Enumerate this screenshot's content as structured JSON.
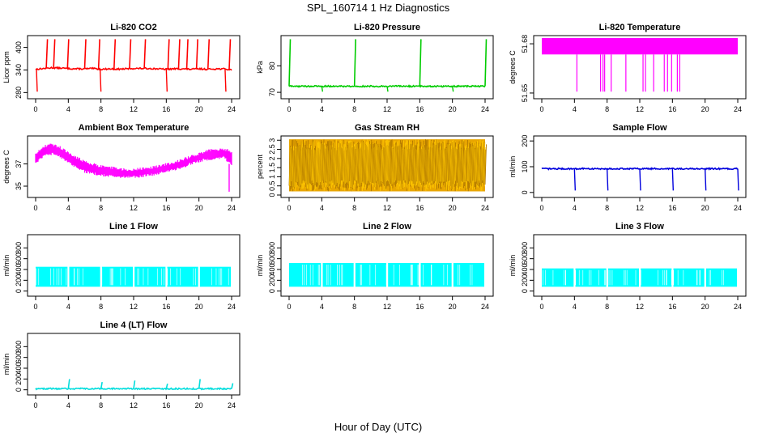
{
  "figure": {
    "title": "SPL_160714  1 Hz Diagnostics",
    "xlabel": "Hour of Day (UTC)"
  },
  "chart_data": [
    {
      "type": "line",
      "title": "Li-820 CO2",
      "ylabel": "Licor ppm",
      "color": "#ff0000",
      "xlim": [
        0,
        24
      ],
      "ylim": [
        270,
        425
      ],
      "xticks": [
        0,
        4,
        8,
        12,
        16,
        20,
        24
      ],
      "yticks": [
        280,
        340,
        400
      ],
      "series": [
        {
          "name": "CO2",
          "x": [
            0,
            1,
            2,
            3,
            4,
            5,
            6,
            7,
            8,
            9,
            10,
            11,
            12,
            13,
            14,
            15,
            16,
            17,
            18,
            19,
            20,
            21,
            22,
            23,
            24
          ],
          "values": [
            342,
            344,
            346,
            345,
            344,
            343,
            343,
            344,
            342,
            343,
            342,
            343,
            344,
            344,
            344,
            343,
            342,
            343,
            343,
            342,
            343,
            342,
            343,
            343,
            340
          ]
        }
      ],
      "spikes_up": [
        1.3,
        2.2,
        3.9,
        6.0,
        7.7,
        9.6,
        11.5,
        13.3,
        16.2,
        17.5,
        18.5,
        19.7,
        21.1,
        23.7
      ],
      "spikes_down": [
        0.1,
        7.9,
        16.0,
        23.2
      ]
    },
    {
      "type": "line",
      "title": "Li-820 Pressure",
      "ylabel": "kPa",
      "color": "#00cc00",
      "xlim": [
        0,
        24
      ],
      "ylim": [
        68.5,
        90.5
      ],
      "xticks": [
        0,
        4,
        8,
        12,
        16,
        20,
        24
      ],
      "yticks": [
        70,
        80
      ],
      "series": [
        {
          "name": "Pressure",
          "x": [
            0,
            24
          ],
          "values": [
            72.3,
            72.3
          ]
        }
      ],
      "spikes_up": [
        0.0,
        8.0,
        16.0,
        24.0
      ],
      "spikes_down": [
        4.0,
        12.0,
        20.0
      ]
    },
    {
      "type": "line",
      "title": "Li-820 Temperature",
      "ylabel": "degrees C",
      "color": "#ff00ff",
      "xlim": [
        0,
        24
      ],
      "ylim": [
        51.648,
        51.6835
      ],
      "xticks": [
        0,
        4,
        8,
        12,
        16,
        20,
        24
      ],
      "yticks": [
        51.65,
        51.68
      ],
      "series": [
        {
          "name": "Temperature",
          "band_low": 51.6735,
          "band_high": 51.6835
        }
      ],
      "spikes_down": [
        4.3,
        7.2,
        7.5,
        7.7,
        8.5,
        10.3,
        12.4,
        12.7,
        13.7,
        15.0,
        15.4,
        15.9,
        16.6,
        16.9
      ]
    },
    {
      "type": "area",
      "title": "Ambient Box Temperature",
      "ylabel": "degrees C",
      "color": "#ff00ff",
      "xlim": [
        0,
        24
      ],
      "ylim": [
        34.2,
        39.3
      ],
      "xticks": [
        0,
        4,
        8,
        12,
        16,
        20,
        24
      ],
      "yticks": [
        35,
        37
      ],
      "series": [
        {
          "name": "Box Temp",
          "x": [
            0,
            1,
            2,
            3,
            4,
            5,
            6,
            7,
            8,
            9,
            10,
            11,
            12,
            13,
            14,
            15,
            16,
            17,
            18,
            19,
            20,
            21,
            22,
            23,
            24
          ],
          "low": [
            37.0,
            37.6,
            37.8,
            37.5,
            37.0,
            36.6,
            36.2,
            36.0,
            35.9,
            35.8,
            35.7,
            35.7,
            35.7,
            35.8,
            35.9,
            36.0,
            36.2,
            36.4,
            36.6,
            36.9,
            37.1,
            37.3,
            37.4,
            37.5,
            36.8
          ],
          "high": [
            38.0,
            38.7,
            38.9,
            38.6,
            38.1,
            37.7,
            37.3,
            37.1,
            36.9,
            36.8,
            36.7,
            36.6,
            36.6,
            36.7,
            36.8,
            36.9,
            37.1,
            37.3,
            37.5,
            37.8,
            38.0,
            38.3,
            38.4,
            38.5,
            38.2
          ]
        }
      ],
      "spikes_down": [
        23.7
      ]
    },
    {
      "type": "area",
      "title": "Gas Stream RH",
      "ylabel": "percent",
      "color": "#ffa500",
      "xlim": [
        0,
        24
      ],
      "ylim": [
        0,
        3.1
      ],
      "xticks": [
        0,
        4,
        8,
        12,
        16,
        20,
        24
      ],
      "yticks": [
        0.0,
        0.5,
        1.0,
        1.5,
        2.0,
        2.5,
        3.0
      ],
      "series": [
        {
          "name": "RH",
          "band_low": 0.2,
          "band_high": 3.05
        }
      ]
    },
    {
      "type": "line",
      "title": "Sample Flow",
      "ylabel": "ml/min",
      "color": "#0000dd",
      "xlim": [
        0,
        24
      ],
      "ylim": [
        -10,
        210
      ],
      "xticks": [
        0,
        4,
        8,
        12,
        16,
        20,
        24
      ],
      "yticks": [
        0,
        100,
        200
      ],
      "series": [
        {
          "name": "Sample Flow",
          "x": [
            0,
            24
          ],
          "values": [
            92,
            92
          ]
        }
      ],
      "spikes_down": [
        4.0,
        8.0,
        12.0,
        16.0,
        20.0,
        24.0
      ]
    },
    {
      "type": "area",
      "title": "Line 1 Flow",
      "ylabel": "ml/min",
      "color": "#00ffff",
      "xlim": [
        0,
        24
      ],
      "ylim": [
        -50,
        1000
      ],
      "xticks": [
        0,
        4,
        8,
        12,
        16,
        20,
        24
      ],
      "yticks": [
        0,
        200,
        400,
        600,
        800
      ],
      "series": [
        {
          "name": "Line 1",
          "band_low": 80,
          "band_high": 450
        }
      ],
      "gaps": [
        4.0,
        8.0,
        12.0,
        16.0,
        20.0,
        24.0
      ]
    },
    {
      "type": "area",
      "title": "Line 2 Flow",
      "ylabel": "ml/min",
      "color": "#00ffff",
      "xlim": [
        0,
        24
      ],
      "ylim": [
        -50,
        1000
      ],
      "xticks": [
        0,
        4,
        8,
        12,
        16,
        20,
        24
      ],
      "yticks": [
        0,
        200,
        400,
        600,
        800
      ],
      "series": [
        {
          "name": "Line 2",
          "band_low": 80,
          "band_high": 520
        }
      ],
      "gaps": [
        4.0,
        8.0,
        12.0,
        16.0,
        20.0,
        24.0
      ]
    },
    {
      "type": "area",
      "title": "Line 3 Flow",
      "ylabel": "ml/min",
      "color": "#00ffff",
      "xlim": [
        0,
        24
      ],
      "ylim": [
        -50,
        1000
      ],
      "xticks": [
        0,
        4,
        8,
        12,
        16,
        20,
        24
      ],
      "yticks": [
        0,
        200,
        400,
        600,
        800
      ],
      "series": [
        {
          "name": "Line 3",
          "band_low": 80,
          "band_high": 420
        }
      ],
      "gaps": [
        4.0,
        8.0,
        12.0,
        16.0,
        20.0,
        24.0
      ]
    },
    {
      "type": "line",
      "title": "Line 4 (LT) Flow",
      "ylabel": "ml/min",
      "color": "#00dddd",
      "xlim": [
        0,
        24
      ],
      "ylim": [
        -50,
        1000
      ],
      "xticks": [
        0,
        4,
        8,
        12,
        16,
        20,
        24
      ],
      "yticks": [
        0,
        200,
        400,
        600,
        800
      ],
      "series": [
        {
          "name": "Line 4",
          "x": [
            0,
            24
          ],
          "values": [
            20,
            20
          ]
        }
      ],
      "spikes_up": [
        4.0,
        8.0,
        12.0,
        16.0,
        20.0,
        24.0
      ]
    }
  ]
}
